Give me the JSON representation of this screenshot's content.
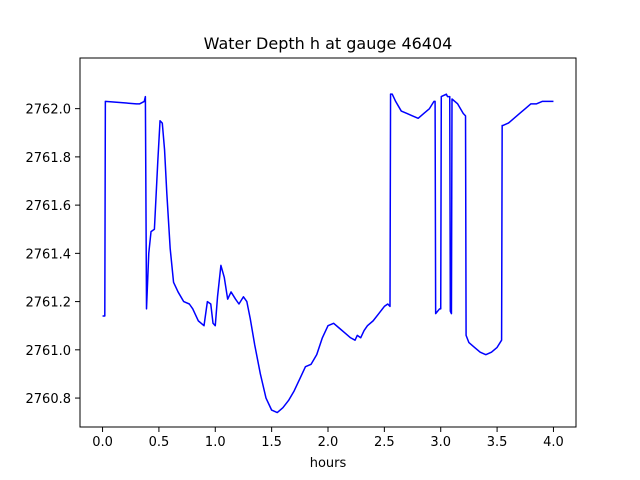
{
  "chart_data": {
    "type": "line",
    "title": "Water Depth h at gauge 46404",
    "xlabel": "hours",
    "ylabel": "",
    "xlim": [
      -0.2,
      4.2
    ],
    "ylim": [
      2760.68,
      2762.21
    ],
    "grid": false,
    "xticks": [
      0.0,
      0.5,
      1.0,
      1.5,
      2.0,
      2.5,
      3.0,
      3.5,
      4.0
    ],
    "xtick_labels": [
      "0.0",
      "0.5",
      "1.0",
      "1.5",
      "2.0",
      "2.5",
      "3.0",
      "3.5",
      "4.0"
    ],
    "yticks": [
      2760.8,
      2761.0,
      2761.2,
      2761.4,
      2761.6,
      2761.8,
      2762.0
    ],
    "ytick_labels": [
      "2760.8",
      "2761.0",
      "2761.2",
      "2761.4",
      "2761.6",
      "2761.8",
      "2762.0"
    ],
    "series": [
      {
        "color": "#0000ff",
        "x": [
          0.0,
          0.02,
          0.025,
          0.3,
          0.33,
          0.37,
          0.38,
          0.39,
          0.41,
          0.43,
          0.46,
          0.49,
          0.51,
          0.53,
          0.55,
          0.57,
          0.6,
          0.63,
          0.67,
          0.72,
          0.77,
          0.8,
          0.85,
          0.9,
          0.93,
          0.96,
          0.98,
          1.0,
          1.02,
          1.05,
          1.08,
          1.11,
          1.14,
          1.18,
          1.21,
          1.25,
          1.28,
          1.31,
          1.35,
          1.4,
          1.45,
          1.5,
          1.55,
          1.6,
          1.65,
          1.7,
          1.75,
          1.8,
          1.85,
          1.9,
          1.95,
          2.0,
          2.05,
          2.1,
          2.15,
          2.2,
          2.24,
          2.26,
          2.29,
          2.32,
          2.35,
          2.4,
          2.45,
          2.5,
          2.53,
          2.55,
          2.555,
          2.57,
          2.6,
          2.65,
          2.7,
          2.75,
          2.8,
          2.85,
          2.9,
          2.94,
          2.95,
          2.955,
          2.99,
          3.0,
          3.005,
          3.05,
          3.06,
          3.08,
          3.085,
          3.095,
          3.1,
          3.15,
          3.2,
          3.22,
          3.225,
          3.25,
          3.3,
          3.35,
          3.4,
          3.45,
          3.5,
          3.54,
          3.545,
          3.55,
          3.6,
          3.65,
          3.7,
          3.75,
          3.8,
          3.85,
          3.9,
          4.0
        ],
        "y": [
          2761.14,
          2761.14,
          2762.03,
          2762.02,
          2762.02,
          2762.03,
          2762.05,
          2761.17,
          2761.4,
          2761.49,
          2761.5,
          2761.78,
          2761.95,
          2761.94,
          2761.83,
          2761.65,
          2761.42,
          2761.28,
          2761.24,
          2761.2,
          2761.19,
          2761.17,
          2761.12,
          2761.1,
          2761.2,
          2761.19,
          2761.11,
          2761.1,
          2761.22,
          2761.35,
          2761.3,
          2761.21,
          2761.24,
          2761.21,
          2761.19,
          2761.22,
          2761.2,
          2761.13,
          2761.02,
          2760.9,
          2760.8,
          2760.75,
          2760.74,
          2760.76,
          2760.79,
          2760.83,
          2760.88,
          2760.93,
          2760.94,
          2760.98,
          2761.05,
          2761.1,
          2761.11,
          2761.09,
          2761.07,
          2761.05,
          2761.04,
          2761.06,
          2761.05,
          2761.08,
          2761.1,
          2761.12,
          2761.15,
          2761.18,
          2761.19,
          2761.18,
          2762.06,
          2762.06,
          2762.03,
          2761.99,
          2761.98,
          2761.97,
          2761.96,
          2761.98,
          2762.0,
          2762.03,
          2762.03,
          2761.15,
          2761.17,
          2761.17,
          2762.05,
          2762.06,
          2762.05,
          2762.05,
          2761.16,
          2761.15,
          2762.04,
          2762.02,
          2761.98,
          2761.97,
          2761.06,
          2761.03,
          2761.01,
          2760.99,
          2760.98,
          2760.99,
          2761.01,
          2761.04,
          2761.93,
          2761.93,
          2761.94,
          2761.96,
          2761.98,
          2762.0,
          2762.02,
          2762.02,
          2762.03,
          2762.03
        ]
      }
    ]
  }
}
